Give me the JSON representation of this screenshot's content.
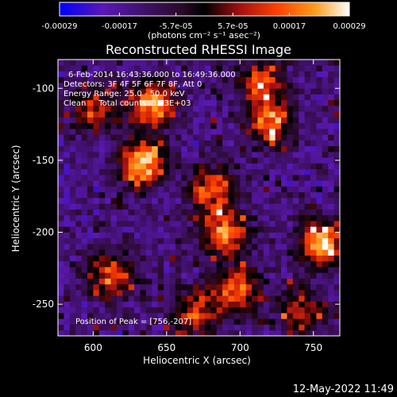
{
  "chart_data": {
    "type": "heatmap",
    "title": "Reconstructed RHESSI Image",
    "xlabel": "Heliocentric X (arcsec)",
    "ylabel": "Heliocentric Y (arcsec)",
    "xlim": [
      576,
      768
    ],
    "ylim": [
      -272,
      -80
    ],
    "x_ticks": [
      600,
      650,
      700,
      750
    ],
    "y_ticks": [
      -250,
      -200,
      -150,
      -100
    ],
    "x_tick_labels": [
      "600",
      "650",
      "700",
      "750"
    ],
    "y_tick_labels": [
      "-250",
      "-200",
      "-150",
      "-100"
    ],
    "grid": false,
    "colorbar": {
      "ticks": [
        -0.00029,
        -0.00017,
        -5.7e-05,
        5.7e-05,
        0.00017,
        0.00029
      ],
      "tick_labels": [
        "-0.00029",
        "-0.00017",
        "-5.7e-05",
        "5.7e-05",
        "0.00017",
        "0.00029"
      ],
      "units_label": "(photons cm⁻² s⁻¹ asec⁻²)",
      "range": [
        -0.00029,
        0.00029
      ],
      "colors": [
        "#0000ff",
        "#5a18b4",
        "#2a0a2a",
        "#000000",
        "#a01010",
        "#ff4000",
        "#ff9a1a",
        "#ffffff"
      ]
    },
    "annotations": [
      "6-Feb-2014 16:43:36.000 to 16:49:36.000",
      "Detectors: 3F 4F 5F 6F 7F 8F, Att 0",
      "Energy Range: 25.0 - 50.0 keV",
      "Clean     Total counts: 8.83E+03"
    ],
    "peak_label": "Position of Peak = [756,-207]",
    "peak_position": [
      756,
      -207
    ],
    "hot_spots": [
      {
        "x": 634,
        "y": -152,
        "value": 0.00029
      },
      {
        "x": 640,
        "y": -110,
        "value": 0.00024
      },
      {
        "x": 756,
        "y": -207,
        "value": 0.00029
      },
      {
        "x": 690,
        "y": -200,
        "value": 0.00022
      },
      {
        "x": 697,
        "y": -240,
        "value": 0.00019
      },
      {
        "x": 720,
        "y": -123,
        "value": 0.0002
      },
      {
        "x": 612,
        "y": -230,
        "value": 0.00018
      },
      {
        "x": 715,
        "y": -95,
        "value": 0.00016
      },
      {
        "x": 680,
        "y": -170,
        "value": 0.00017
      },
      {
        "x": 600,
        "y": -115,
        "value": 0.00013
      },
      {
        "x": 670,
        "y": -255,
        "value": 0.00014
      },
      {
        "x": 740,
        "y": -255,
        "value": 0.00011
      }
    ]
  },
  "footer": {
    "timestamp": "12-May-2022 11:49"
  }
}
